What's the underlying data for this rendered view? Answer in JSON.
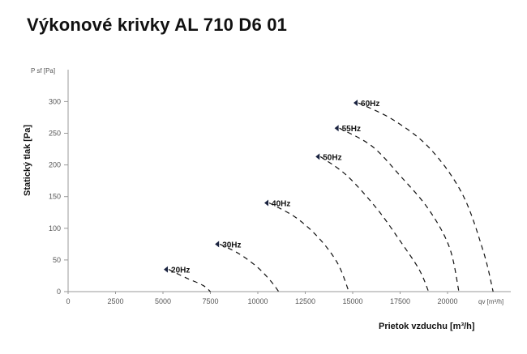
{
  "page": {
    "title": "Výkonové krivky AL 710 D6 01"
  },
  "chart_data": {
    "type": "line",
    "title": "Výkonové krivky AL 710 D6 01",
    "xlabel": "Prietok vzduchu [m³/h]",
    "ylabel": "Statický tlak [Pa]",
    "x_unit_label": "qv [m³/h]",
    "y_unit_label": "P sf [Pa]",
    "xlim": [
      0,
      22500
    ],
    "ylim": [
      0,
      325
    ],
    "xticks": [
      0,
      2500,
      5000,
      7500,
      10000,
      12500,
      15000,
      17500,
      20000
    ],
    "yticks": [
      0,
      50,
      100,
      150,
      200,
      250,
      300
    ],
    "grid": false,
    "line_style": "dashed",
    "series": [
      {
        "name": "20Hz",
        "points": [
          [
            5300,
            35
          ],
          [
            6200,
            22
          ],
          [
            7100,
            10
          ],
          [
            7500,
            0
          ]
        ]
      },
      {
        "name": "30Hz",
        "points": [
          [
            8000,
            75
          ],
          [
            9000,
            60
          ],
          [
            10000,
            38
          ],
          [
            10700,
            16
          ],
          [
            11100,
            0
          ]
        ]
      },
      {
        "name": "40Hz",
        "points": [
          [
            10600,
            140
          ],
          [
            12000,
            117
          ],
          [
            13200,
            85
          ],
          [
            14200,
            45
          ],
          [
            14800,
            0
          ]
        ]
      },
      {
        "name": "50Hz",
        "points": [
          [
            13300,
            213
          ],
          [
            14700,
            183
          ],
          [
            16300,
            130
          ],
          [
            17500,
            80
          ],
          [
            18500,
            35
          ],
          [
            19000,
            0
          ]
        ]
      },
      {
        "name": "55Hz",
        "points": [
          [
            14300,
            258
          ],
          [
            16000,
            230
          ],
          [
            17500,
            183
          ],
          [
            19000,
            130
          ],
          [
            20100,
            70
          ],
          [
            20600,
            0
          ]
        ]
      },
      {
        "name": "60Hz",
        "points": [
          [
            15300,
            298
          ],
          [
            17200,
            270
          ],
          [
            19100,
            225
          ],
          [
            20800,
            153
          ],
          [
            21900,
            62
          ],
          [
            22400,
            0
          ]
        ]
      }
    ]
  }
}
